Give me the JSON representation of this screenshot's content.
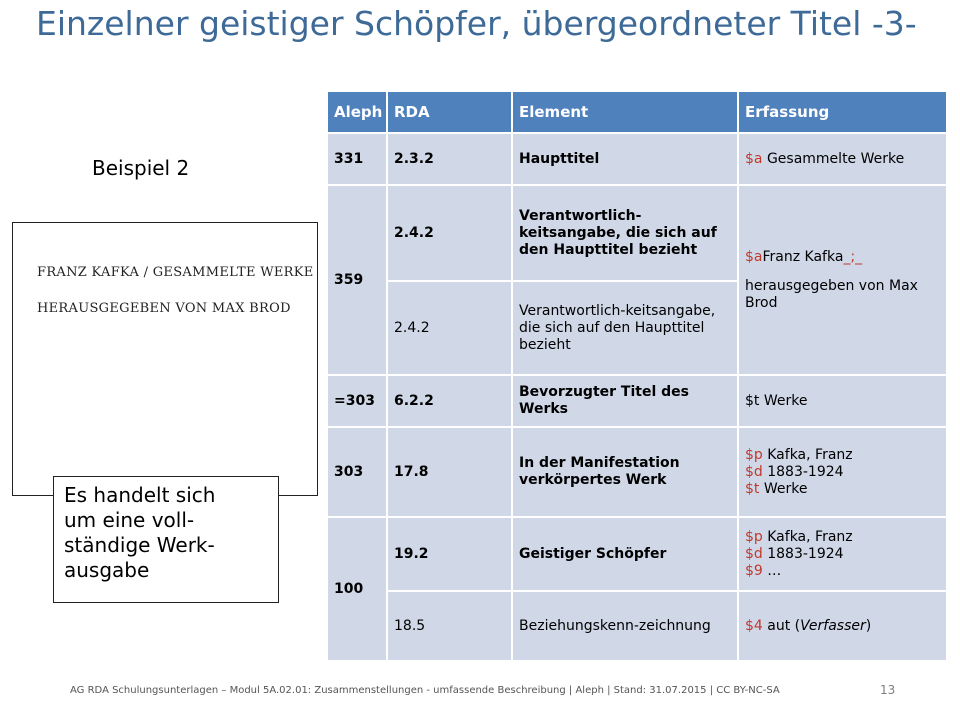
{
  "title": "Einzelner geistiger Schöpfer, übergeordneter Titel -3-",
  "example_label": "Beispiel 2",
  "scan": {
    "line1": "FRANZ KAFKA  /  GESAMMELTE WERKE",
    "line2": "HERAUSGEGEBEN VON MAX BROD"
  },
  "note": {
    "lines": [
      "Es handelt sich",
      "um eine voll-",
      "ständige Werk-",
      "ausgabe"
    ]
  },
  "table": {
    "headers": [
      "Aleph",
      "RDA",
      "Element",
      "Erfassung"
    ],
    "rows": {
      "r331": {
        "aleph": "331",
        "rda": "2.3.2",
        "element": "Haupttitel",
        "erf_code": "$a",
        "erf_text": " Gesammelte Werke"
      },
      "r359": {
        "aleph": "359",
        "rda_a": "2.4.2",
        "element_a": "Verantwortlich-keitsangabe, die sich auf den Haupttitel bezieht",
        "rda_b": "2.4.2",
        "element_b": "Verantwortlich-keitsangabe, die sich auf den Haupttitel bezieht",
        "erf_code1": "$a",
        "erf_text1": "Franz Kafka",
        "erf_code2": "_;_",
        "erf_text2": "herausgegeben von Max Brod"
      },
      "r303eq": {
        "aleph": "=303",
        "rda": "6.2.2",
        "element": "Bevorzugter Titel des Werks",
        "erf": "$t Werke"
      },
      "r303": {
        "aleph": "303",
        "rda": "17.8",
        "element": "In der Manifestation verkörpertes Werk",
        "erf_code1": "$p",
        "erf_text1": " Kafka, Franz",
        "erf_code2": "$d",
        "erf_text2": " 1883-1924",
        "erf_code3": "$t",
        "erf_text3": " Werke"
      },
      "r100": {
        "aleph": "100",
        "rda_a": "19.2",
        "element_a": "Geistiger Schöpfer",
        "erf_a_code1": "$p",
        "erf_a_text1": " Kafka, Franz",
        "erf_a_code2": "$d",
        "erf_a_text2": " 1883-1924",
        "erf_a_code3": "$9",
        "erf_a_text3": " …",
        "rda_b": "18.5",
        "element_b": "Beziehungskenn-zeichnung",
        "erf_b_code": "$4",
        "erf_b_text": " aut (",
        "erf_b_ital": "Verfasser",
        "erf_b_end": ")"
      }
    }
  },
  "footer": "AG RDA Schulungsunterlagen – Modul 5A.02.01: Zusammenstellungen - umfassende Beschreibung | Aleph | Stand: 31.07.2015 | CC BY-NC-SA",
  "page_number": "13",
  "colors": {
    "title": "#3e6a98",
    "header_bg": "#4f81bd",
    "cell_bg": "#d0d8e8",
    "code_red": "#c0392b"
  }
}
